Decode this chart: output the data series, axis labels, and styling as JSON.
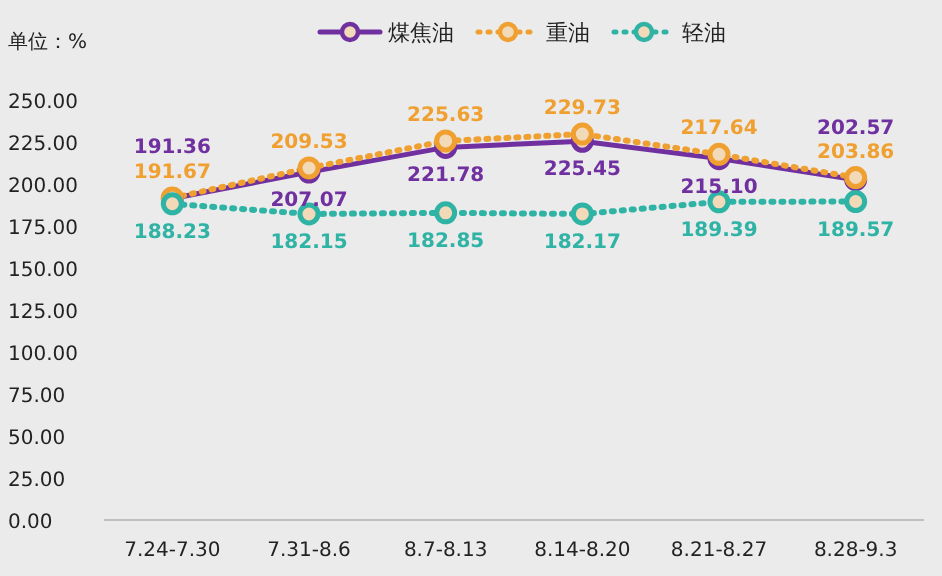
{
  "chart_data": {
    "type": "line",
    "ylabel": "单位：%",
    "legend": "top",
    "marker": "circle",
    "grid": false,
    "categories": [
      "7.24-7.30",
      "7.31-8.6",
      "8.7-8.13",
      "8.14-8.20",
      "8.21-8.27",
      "8.28-9.3"
    ],
    "ylim": [
      0,
      250
    ],
    "yticks": [
      {
        "value": 0,
        "label": "0.00"
      },
      {
        "value": 25,
        "label": "25.00"
      },
      {
        "value": 50,
        "label": "50.00"
      },
      {
        "value": 75,
        "label": "75.00"
      },
      {
        "value": 100,
        "label": "100.00"
      },
      {
        "value": 125,
        "label": "125.00"
      },
      {
        "value": 150,
        "label": "150.00"
      },
      {
        "value": 175,
        "label": "175.00"
      },
      {
        "value": 200,
        "label": "200.00"
      },
      {
        "value": 225,
        "label": "225.00"
      },
      {
        "value": 250,
        "label": "250.00"
      }
    ],
    "series": [
      {
        "name": "煤焦油",
        "color": "#7030a0",
        "line_style": "solid",
        "values": [
          191.36,
          207.07,
          221.78,
          225.45,
          215.1,
          202.57
        ],
        "value_labels": [
          "191.36",
          "207.07",
          "221.78",
          "225.45",
          "215.10",
          "202.57"
        ]
      },
      {
        "name": "重油",
        "color": "#f0a030",
        "line_style": "dotted",
        "values": [
          191.67,
          209.53,
          225.63,
          229.73,
          217.64,
          203.86
        ],
        "value_labels": [
          "191.67",
          "209.53",
          "225.63",
          "229.73",
          "217.64",
          "203.86"
        ]
      },
      {
        "name": "轻油",
        "color": "#2fb3a5",
        "line_style": "dotted",
        "values": [
          188.23,
          182.15,
          182.85,
          182.17,
          189.39,
          189.57
        ],
        "value_labels": [
          "188.23",
          "182.15",
          "182.85",
          "182.17",
          "189.39",
          "189.57"
        ]
      }
    ]
  }
}
